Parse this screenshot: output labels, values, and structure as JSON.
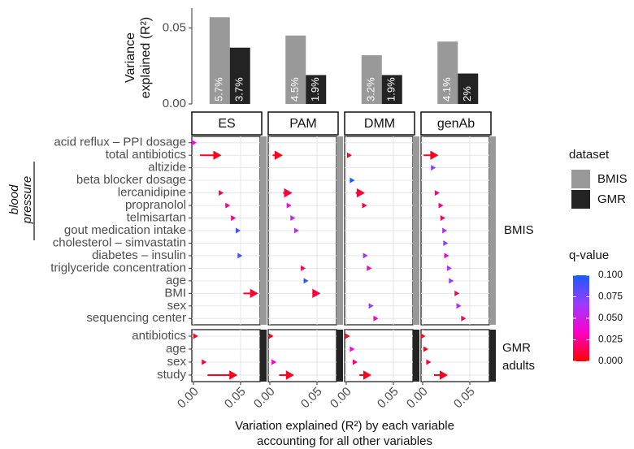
{
  "chart_data": [
    {
      "type": "bar",
      "y_label": "Variance explained (R²)",
      "categories": [
        "ES",
        "PAM",
        "DMM",
        "genAb"
      ],
      "series": [
        {
          "name": "BMIS",
          "color": "#999999",
          "values": [
            0.057,
            0.045,
            0.032,
            0.041
          ],
          "value_labels": [
            "5.7%",
            "4.5%",
            "3.2%",
            "4.1%"
          ]
        },
        {
          "name": "GMR",
          "color": "#232323",
          "values": [
            0.037,
            0.019,
            0.019,
            0.02
          ],
          "value_labels": [
            "3.7%",
            "1.9%",
            "1.9%",
            "2%"
          ]
        }
      ],
      "ylim": [
        0,
        0.063
      ],
      "yticks": [
        {
          "value": 0,
          "label": "0.00"
        },
        {
          "value": 0.05,
          "label": "0.05"
        }
      ],
      "legend_title": "dataset"
    },
    {
      "type": "arrow-dot",
      "panels": [
        "ES",
        "PAM",
        "DMM",
        "genAb"
      ],
      "x_label": "Variation explained (R²) by each variable accounting for all other variables",
      "annotation": "blood pressure",
      "xlim": [
        -0.0017,
        0.0707
      ],
      "xticks": [
        {
          "value": 0,
          "label": "0.00"
        },
        {
          "value": 0.05,
          "label": "0.05"
        }
      ],
      "grid": true,
      "color_scale": {
        "title": "q-value",
        "lim": [
          0,
          0.1
        ],
        "colors": [
          "#ff0000",
          "#ff00c8",
          "#9b3cff",
          "#1a5cff"
        ],
        "ticks": [
          {
            "value": 0,
            "label": "0.000"
          },
          {
            "value": 0.025,
            "label": "0.025"
          },
          {
            "value": 0.05,
            "label": "0.050"
          },
          {
            "value": 0.075,
            "label": "0.075"
          },
          {
            "value": 0.1,
            "label": "0.100"
          }
        ]
      },
      "rows": [
        {
          "name": "BMIS",
          "categories": [
            "acid reflux – PPI dosage",
            "total antibiotics",
            "altizide",
            "beta blocker dosage",
            "lercanidipine",
            "propranolol",
            "telmisartan",
            "gout medication intake",
            "cholesterol – simvastatin",
            "diabetes – insulin",
            "triglyceride concentration",
            "age",
            "BMI",
            "sex",
            "sequencing center"
          ],
          "series": [
            {
              "values": [
                0.0034,
                0.028,
                null,
                null,
                0.032,
                0.039,
                0.045,
                0.05,
                null,
                0.052,
                null,
                null,
                0.067,
                null,
                null
              ],
              "from": [
                null,
                0.007,
                null,
                null,
                null,
                null,
                null,
                null,
                null,
                null,
                null,
                null,
                0.053,
                null,
                null
              ],
              "qvalues": [
                0.04,
                0.005,
                null,
                null,
                0.012,
                0.022,
                0.02,
                0.09,
                null,
                0.09,
                null,
                null,
                0.008,
                null,
                null
              ]
            },
            {
              "values": [
                null,
                0.012,
                null,
                null,
                0.022,
                0.023,
                0.027,
                0.031,
                null,
                null,
                0.038,
                0.041,
                0.052,
                null,
                null
              ],
              "from": [
                null,
                0.003,
                null,
                null,
                0.014,
                null,
                null,
                null,
                null,
                null,
                null,
                null,
                0.045,
                null,
                null
              ],
              "qvalues": [
                null,
                0.005,
                null,
                null,
                0.01,
                0.04,
                0.05,
                0.06,
                null,
                null,
                0.015,
                0.095,
                0.01,
                null,
                null
              ]
            },
            {
              "values": [
                null,
                0.006,
                null,
                0.009,
                0.018,
                0.022,
                null,
                null,
                null,
                0.023,
                0.027,
                null,
                null,
                0.029,
                0.034
              ],
              "from": [
                null,
                null,
                null,
                null,
                0.01,
                null,
                null,
                null,
                null,
                null,
                null,
                null,
                null,
                null,
                null
              ],
              "qvalues": [
                null,
                0.005,
                null,
                0.1,
                0.008,
                0.01,
                null,
                null,
                null,
                0.06,
                0.03,
                null,
                null,
                0.07,
                0.03
              ]
            },
            {
              "values": [
                null,
                0.015,
                0.014,
                null,
                0.018,
                0.022,
                0.024,
                0.026,
                0.027,
                0.028,
                0.031,
                0.033,
                0.039,
                0.041,
                0.046
              ],
              "from": [
                null,
                0.001,
                null,
                null,
                null,
                null,
                null,
                null,
                null,
                null,
                null,
                null,
                null,
                null,
                null
              ],
              "qvalues": [
                null,
                0.005,
                0.07,
                null,
                0.02,
                0.02,
                0.015,
                0.06,
                0.07,
                0.04,
                0.06,
                0.07,
                0.01,
                0.06,
                0.015
              ]
            }
          ]
        },
        {
          "name": "GMR adults",
          "categories": [
            "antibiotics",
            "age",
            "sex",
            "study"
          ],
          "series": [
            {
              "values": [
                0.005,
                null,
                0.014,
                0.045
              ],
              "from": [
                null,
                null,
                null,
                0.015
              ],
              "qvalues": [
                0.005,
                null,
                0.008,
                0.005
              ]
            },
            {
              "values": [
                0.004,
                null,
                0.007,
                0.024
              ],
              "from": [
                null,
                null,
                null,
                0.01
              ],
              "qvalues": [
                0.005,
                null,
                0.035,
                0.005
              ]
            },
            {
              "values": [
                0.004,
                0.009,
                0.012,
                0.025
              ],
              "from": [
                null,
                null,
                null,
                0.014
              ],
              "qvalues": [
                0.005,
                0.04,
                0.02,
                0.005
              ]
            },
            {
              "values": [
                0.003,
                0.006,
                0.009,
                0.025
              ],
              "from": [
                null,
                null,
                null,
                0.012
              ],
              "qvalues": [
                0.005,
                0.006,
                0.01,
                0.005
              ]
            }
          ]
        }
      ]
    }
  ]
}
